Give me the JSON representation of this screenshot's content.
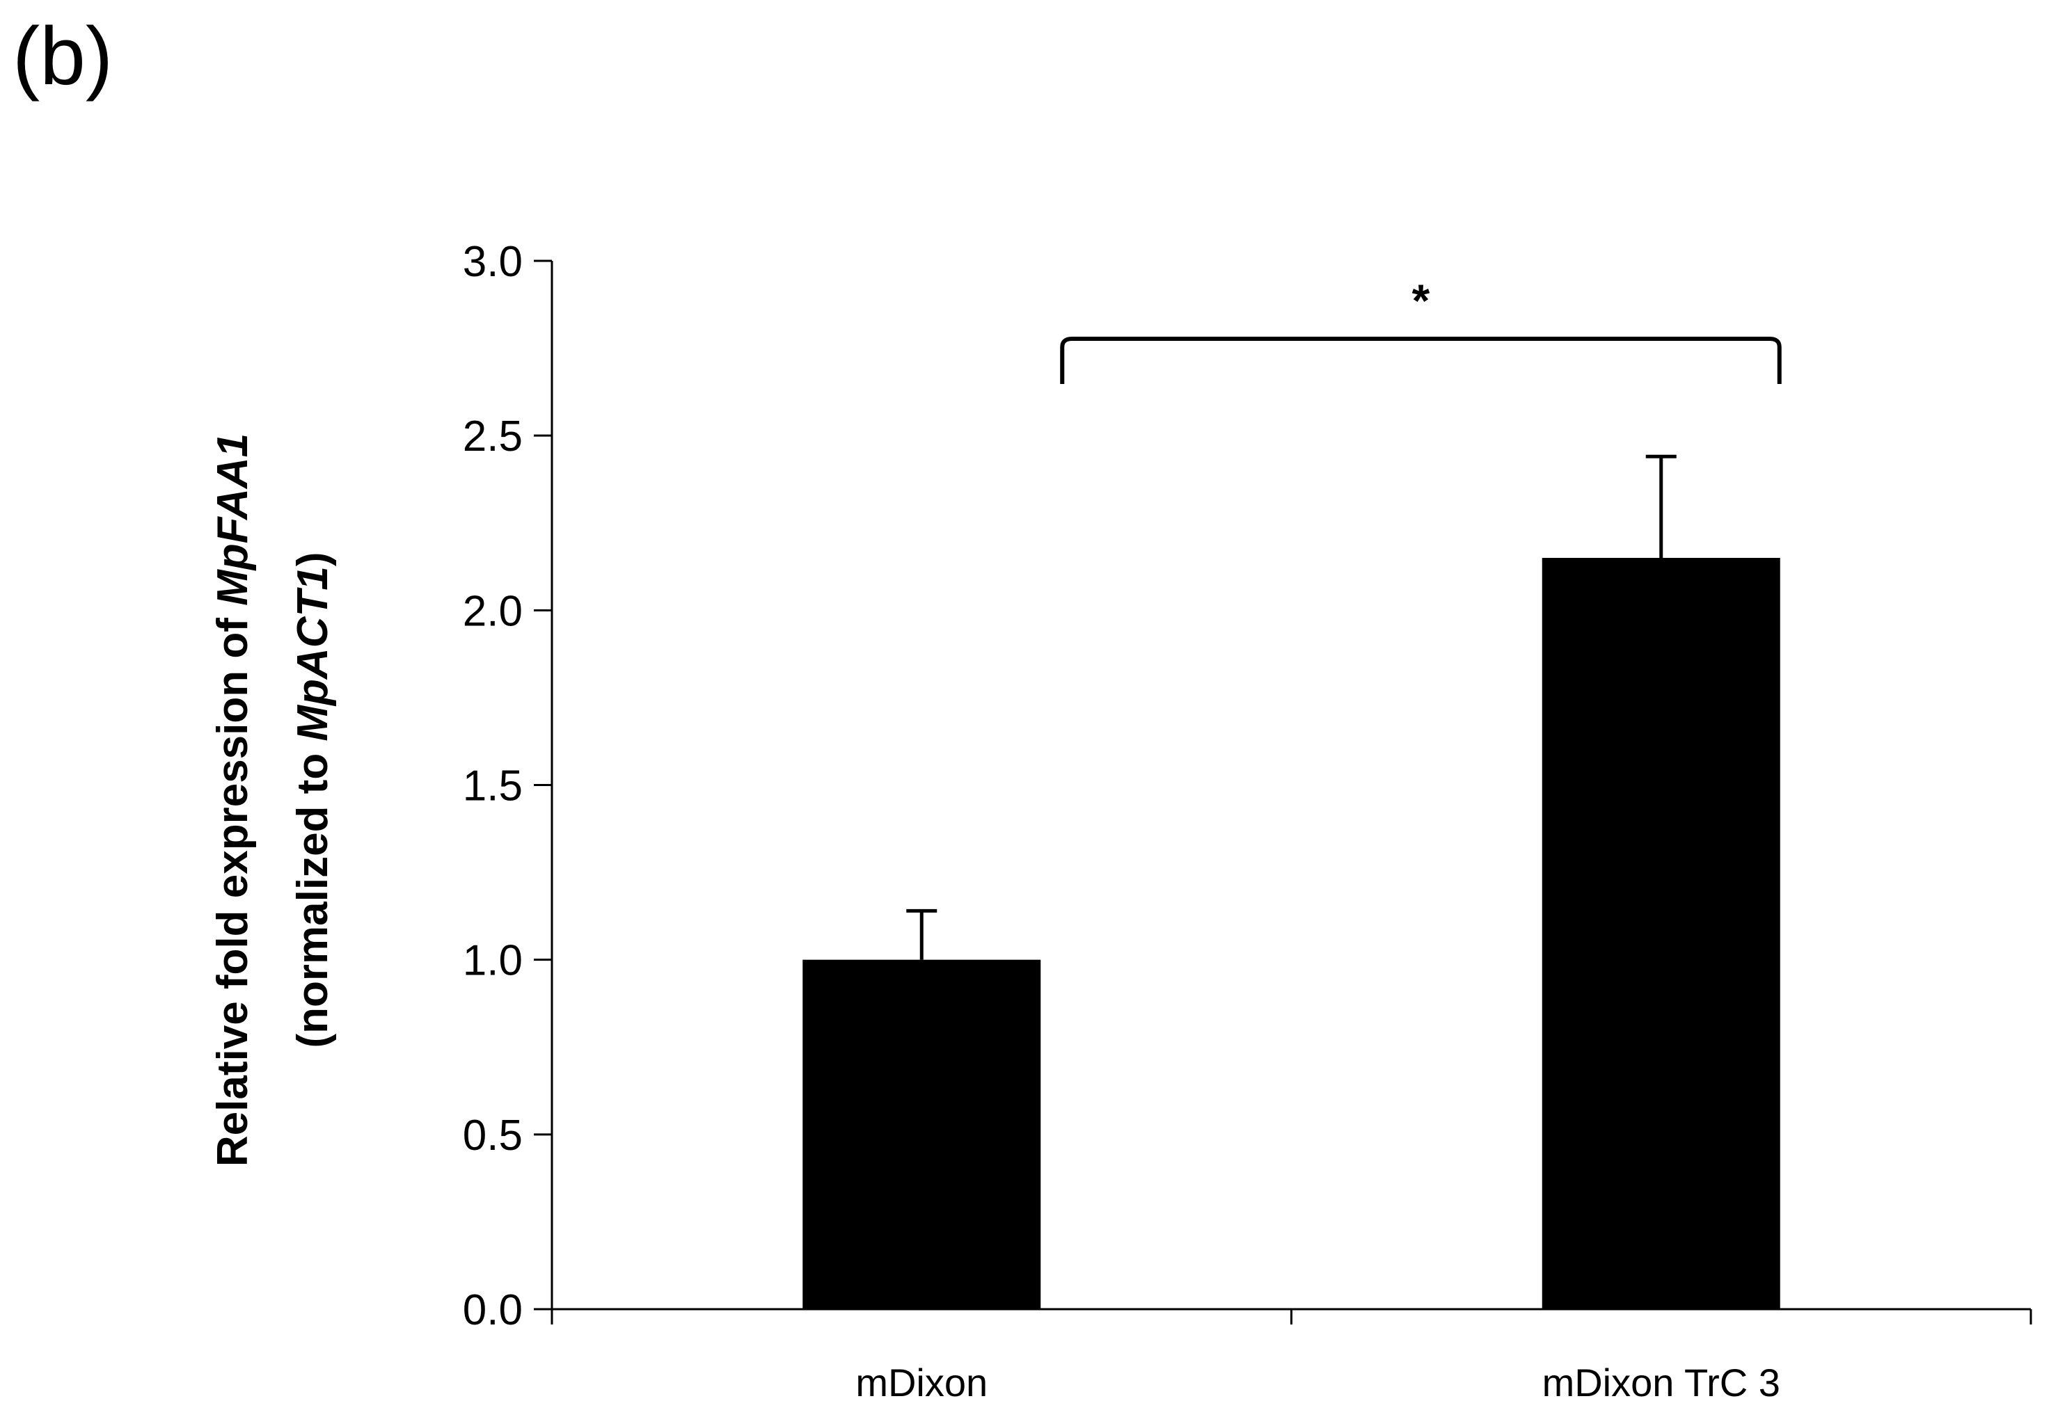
{
  "panel_label": "(b)",
  "chart_data": {
    "type": "bar",
    "categories": [
      "mDixon",
      "mDixon TrC 3"
    ],
    "values": [
      1.0,
      2.15
    ],
    "errors": [
      0.14,
      0.29
    ],
    "ylim": [
      0,
      3.0
    ],
    "yticks": [
      "0.0",
      "0.5",
      "1.0",
      "1.5",
      "2.0",
      "2.5",
      "3.0"
    ],
    "ylabel_line1": {
      "prefix": "Relative fold expression of ",
      "italic": "MpFAA1",
      "suffix": ""
    },
    "ylabel_line2": {
      "prefix": "(normalized to ",
      "italic": "MpACT1",
      "suffix": ")"
    },
    "significance": {
      "label": "*",
      "between": [
        "mDixon",
        "mDixon TrC 3"
      ]
    },
    "bar_color": "#000000",
    "grid": false
  }
}
